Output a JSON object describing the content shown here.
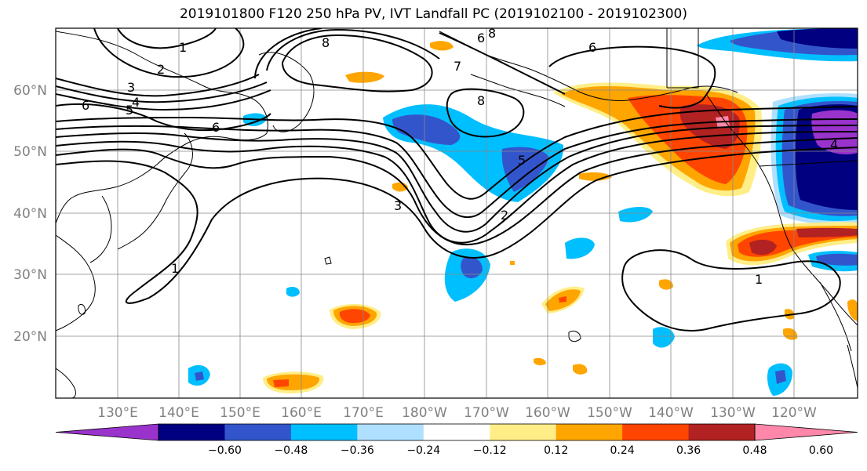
{
  "title": "2019101800 F120 250 hPa PV, IVT Landfall PC (2019102100 - 2019102300)",
  "lat_labels": [
    "60°N",
    "50°N",
    "40°N",
    "30°N",
    "20°N"
  ],
  "lon_labels": [
    "130°E",
    "140°E",
    "150°E",
    "160°E",
    "170°E",
    "180°W",
    "170°W",
    "160°W",
    "150°W",
    "140°W",
    "130°W",
    "120°W"
  ],
  "colorbar": {
    "colors": [
      "#9933cc",
      "#000080",
      "#3355cc",
      "#00bfff",
      "#b0e0ff",
      "#ffffff",
      "#ffee88",
      "#ffa500",
      "#ff4500",
      "#b22222",
      "#ff88aa"
    ],
    "tick_labels": [
      "−0.60",
      "−0.48",
      "−0.36",
      "−0.24",
      "−0.12",
      "0.12",
      "0.24",
      "0.36",
      "0.48",
      "0.60"
    ]
  },
  "pv_contour_labels": [
    "1",
    "2",
    "3",
    "4",
    "5",
    "6",
    "6",
    "6",
    "8",
    "8",
    "6",
    "7",
    "8",
    "5",
    "3",
    "2",
    "1",
    "1",
    "4"
  ]
}
